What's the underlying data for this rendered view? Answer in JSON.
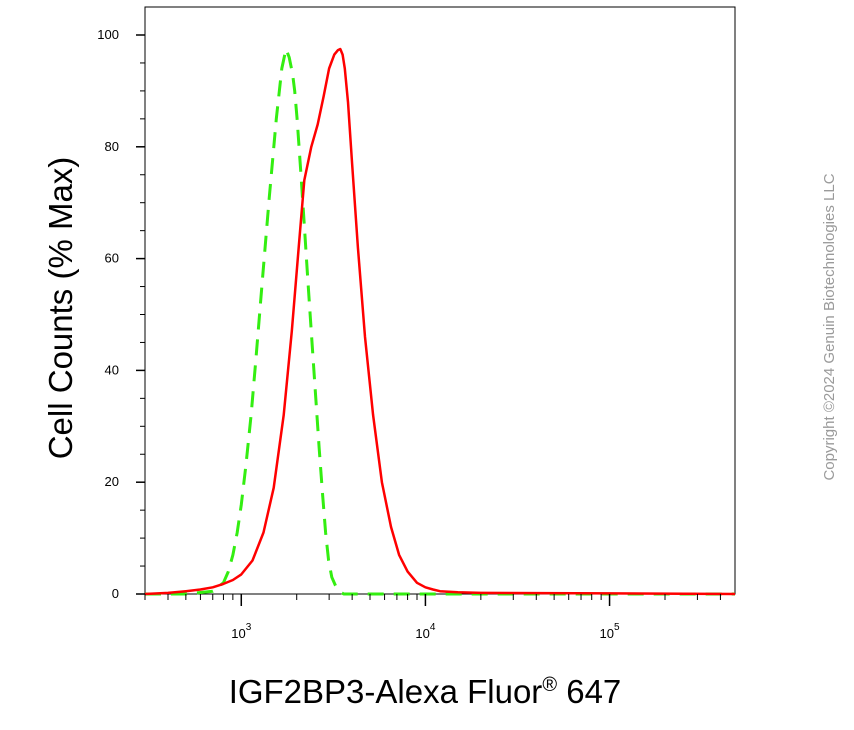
{
  "chart_data": {
    "type": "line",
    "xlabel": "IGF2BP3-Alexa Fluor",
    "xlabel_sup": "®",
    "xlabel_suffix": " 647",
    "ylabel": "Cell Counts (% Max)",
    "x_scale": "log",
    "xlim": [
      300,
      480000
    ],
    "ylim": [
      0,
      100
    ],
    "y_ticks": [
      {
        "value": 0,
        "label": "0"
      },
      {
        "value": 20,
        "label": "20"
      },
      {
        "value": 40,
        "label": "40"
      },
      {
        "value": 60,
        "label": "60"
      },
      {
        "value": 80,
        "label": "80"
      },
      {
        "value": 100,
        "label": "100"
      }
    ],
    "x_ticks": [
      {
        "value": 1000,
        "base": "10",
        "exp": "3"
      },
      {
        "value": 10000,
        "base": "10",
        "exp": "4"
      },
      {
        "value": 100000,
        "base": "10",
        "exp": "5"
      }
    ],
    "grid": false,
    "legend": "none",
    "series": [
      {
        "style": "dashed",
        "color": "#33ee11",
        "x": [
          300,
          500,
          700,
          800,
          850,
          900,
          950,
          1000,
          1060,
          1130,
          1200,
          1300,
          1420,
          1550,
          1660,
          1750,
          1820,
          1900,
          1950,
          2010,
          2100,
          2200,
          2300,
          2420,
          2540,
          2650,
          2760,
          2870,
          2980,
          3100,
          3250,
          3400,
          3600,
          4000,
          5000,
          8000,
          20000,
          100000,
          480000
        ],
        "y": [
          0,
          0,
          0.5,
          2,
          4,
          7,
          11,
          16,
          23,
          32,
          42,
          56,
          71,
          85,
          94,
          97.5,
          96,
          93,
          90,
          85,
          76,
          66,
          56,
          45,
          35,
          26,
          18,
          11,
          6,
          3,
          1.5,
          0.5,
          0,
          0,
          0,
          0,
          0,
          0,
          0
        ]
      },
      {
        "style": "solid",
        "color": "#ff0000",
        "x": [
          300,
          400,
          500,
          600,
          700,
          800,
          900,
          1000,
          1150,
          1320,
          1500,
          1700,
          1880,
          2050,
          2200,
          2400,
          2600,
          2800,
          3000,
          3200,
          3350,
          3450,
          3550,
          3650,
          3800,
          4000,
          4300,
          4700,
          5200,
          5800,
          6500,
          7200,
          8000,
          9000,
          10000,
          11000,
          12000,
          15000,
          20000,
          100000,
          480000
        ],
        "y": [
          0,
          0.2,
          0.5,
          0.8,
          1.2,
          1.8,
          2.5,
          3.5,
          6,
          11,
          19,
          32,
          47,
          62,
          74,
          80,
          84,
          89,
          94,
          96.5,
          97.3,
          97.5,
          96.5,
          94,
          88,
          77,
          62,
          46,
          32,
          20,
          12,
          7,
          4,
          2,
          1.2,
          0.8,
          0.5,
          0.3,
          0.2,
          0.1,
          0
        ]
      }
    ]
  },
  "watermark": {
    "text": "Copyright ©2024 Genuin Biotechnologies LLC"
  }
}
